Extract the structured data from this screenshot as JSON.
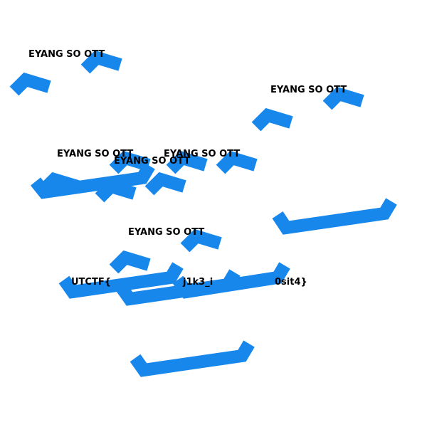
{
  "colors": {
    "stroke": "#1787EC",
    "text": "#000000",
    "background": "#ffffff"
  },
  "labels": {
    "eyang": "EYANG SO OTT",
    "utctf": "UTCTF{",
    "k3": "j1k3_i",
    "sit4": "0sit4}"
  }
}
